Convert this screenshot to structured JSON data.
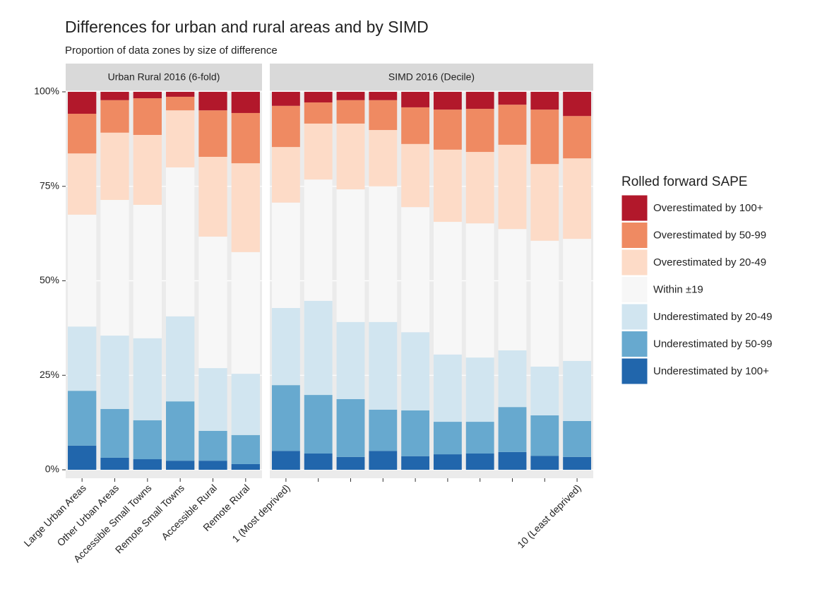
{
  "chart_data": {
    "type": "stacked_bar",
    "title": "Differences for urban and rural areas and by SIMD",
    "subtitle": "Proportion of data zones by size of difference",
    "legend_title": "Rolled forward SAPE",
    "legend_position": "right",
    "grid": true,
    "ylim": [
      0,
      100
    ],
    "yticks": [
      {
        "value": 0,
        "label": "0%"
      },
      {
        "value": 25,
        "label": "25%"
      },
      {
        "value": 50,
        "label": "50%"
      },
      {
        "value": 75,
        "label": "75%"
      },
      {
        "value": 100,
        "label": "100%"
      }
    ],
    "series": [
      {
        "name": "Overestimated by 100+",
        "color": "#b2182b"
      },
      {
        "name": "Overestimated by 50-99",
        "color": "#ef8a62"
      },
      {
        "name": "Overestimated by 20-49",
        "color": "#fddbc7"
      },
      {
        "name": "Within ±19",
        "color": "#f7f7f7"
      },
      {
        "name": "Underestimated by 20-49",
        "color": "#d1e5f0"
      },
      {
        "name": "Underestimated by 50-99",
        "color": "#67a9cf"
      },
      {
        "name": "Underestimated by 100+",
        "color": "#2166ac"
      }
    ],
    "facets": [
      {
        "title": "Urban Rural 2016 (6-fold)",
        "categories": [
          "Large Urban Areas",
          "Other Urban Areas",
          "Accessible Small Towns",
          "Remote Small Towns",
          "Accessible Rural",
          "Remote Rural"
        ],
        "series": [
          {
            "values": [
              5.8,
              2.2,
              1.7,
              1.3,
              4.9,
              5.6
            ]
          },
          {
            "values": [
              10.5,
              8.6,
              9.7,
              3.6,
              12.3,
              13.3
            ]
          },
          {
            "values": [
              16.2,
              17.8,
              18.5,
              15.1,
              21.1,
              23.5
            ]
          },
          {
            "values": [
              29.6,
              35.9,
              35.3,
              39.4,
              34.8,
              32.2
            ]
          },
          {
            "values": [
              17.0,
              19.4,
              21.7,
              22.5,
              16.6,
              16.2
            ]
          },
          {
            "values": [
              14.5,
              12.9,
              10.3,
              15.7,
              7.9,
              7.7
            ]
          },
          {
            "values": [
              6.4,
              3.2,
              2.8,
              2.4,
              2.4,
              1.5
            ]
          }
        ]
      },
      {
        "title": "SIMD 2016 (Decile)",
        "categories": [
          "1 (Most deprived)",
          null,
          null,
          null,
          null,
          null,
          null,
          null,
          null,
          "10 (Least deprived)"
        ],
        "series": [
          {
            "values": [
              3.7,
              2.8,
              2.2,
              2.2,
              4.1,
              4.7,
              4.5,
              3.4,
              4.7,
              6.4
            ]
          },
          {
            "values": [
              10.9,
              5.6,
              6.2,
              7.9,
              9.7,
              10.6,
              11.4,
              10.6,
              14.4,
              11.2
            ]
          },
          {
            "values": [
              14.7,
              14.8,
              17.4,
              14.9,
              16.7,
              19.1,
              18.9,
              22.3,
              20.3,
              21.3
            ]
          },
          {
            "values": [
              27.9,
              32.1,
              35.1,
              35.9,
              33.1,
              35.1,
              35.5,
              32.1,
              33.3,
              32.3
            ]
          },
          {
            "values": [
              20.4,
              24.9,
              20.4,
              23.2,
              20.7,
              17.8,
              17.0,
              15.0,
              12.9,
              15.9
            ]
          },
          {
            "values": [
              17.4,
              15.5,
              15.3,
              10.9,
              12.1,
              8.6,
              8.4,
              11.9,
              10.7,
              9.5
            ]
          },
          {
            "values": [
              5.0,
              4.3,
              3.4,
              5.0,
              3.6,
              4.1,
              4.3,
              4.7,
              3.7,
              3.4
            ]
          }
        ]
      }
    ]
  }
}
